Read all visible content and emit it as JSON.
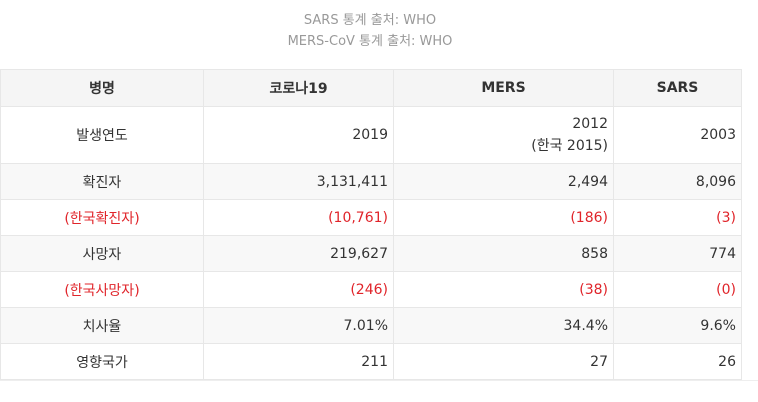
{
  "sources": [
    "SARS 통계 출처: WHO",
    "MERS-CoV 통계 출처: WHO"
  ],
  "table": {
    "headers": [
      "병명",
      "코로나19",
      "MERS",
      "SARS"
    ],
    "rows": [
      {
        "label": "발생연도",
        "covid19": "2019",
        "mers": "2012",
        "mers_note": "(한국 2015)",
        "sars": "2003"
      },
      {
        "label": "확진자",
        "covid19": "3,131,411",
        "mers": "2,494",
        "sars": "8,096"
      },
      {
        "label": "(한국확진자)",
        "covid19": "(10,761)",
        "mers": "(186)",
        "sars": "(3)"
      },
      {
        "label": "사망자",
        "covid19": "219,627",
        "mers": "858",
        "sars": "774"
      },
      {
        "label": "(한국사망자)",
        "covid19": "(246)",
        "mers": "(38)",
        "sars": "(0)"
      },
      {
        "label": "치사율",
        "covid19": "7.01%",
        "mers": "34.4%",
        "sars": "9.6%"
      },
      {
        "label": "영향국가",
        "covid19": "211",
        "mers": "27",
        "sars": "26"
      }
    ]
  },
  "colors": {
    "korea_highlight": "#e0242a",
    "header_bg": "#f5f5f5",
    "source_text": "#999999"
  }
}
